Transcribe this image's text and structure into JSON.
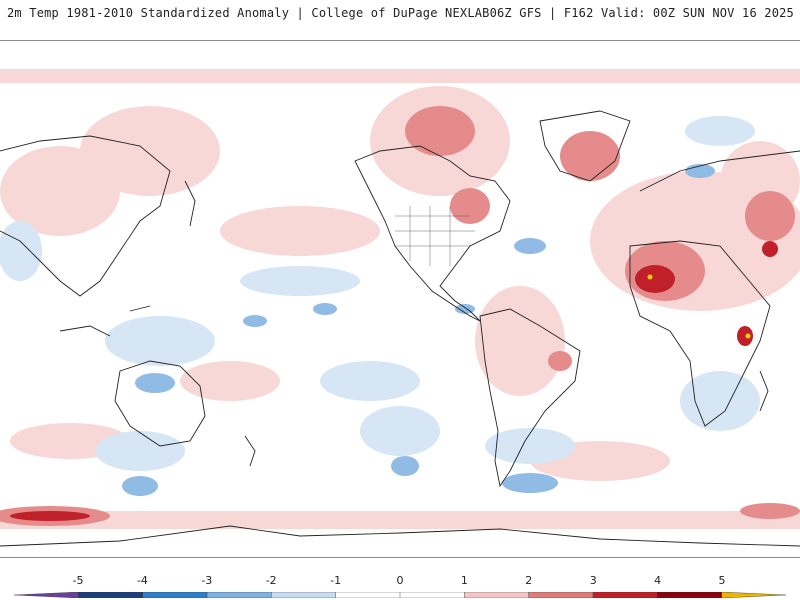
{
  "header": {
    "title_left": "2m Temp 1981-2010 Standardized Anomaly | College of DuPage NEXLAB",
    "title_right": "06Z GFS | F162 Valid: 00Z SUN NOV 16 2025"
  },
  "colorbar": {
    "tick_labels": [
      "-5",
      "-4",
      "-3",
      "-2",
      "-1",
      "0",
      "1",
      "2",
      "3",
      "4",
      "5"
    ],
    "colors": [
      "#6a3fa0",
      "#1f3f7a",
      "#2f7fc8",
      "#7fb2e0",
      "#c8ddf2",
      "#ffffff",
      "#ffffff",
      "#f4c6c6",
      "#e07b7b",
      "#c0202a",
      "#8a0010",
      "#f0b400"
    ]
  },
  "map": {
    "projection": "global equirectangular, Pacific-centered",
    "anomaly_colors": {
      "strong_warm": "#c0202a",
      "warm": "#e58b8b",
      "slight_warm": "#f8d7d7",
      "slight_cold": "#d6e6f5",
      "cold": "#8fbbe4",
      "strong_cold": "#2f6fba",
      "extreme_warm": "#f0d000"
    }
  }
}
